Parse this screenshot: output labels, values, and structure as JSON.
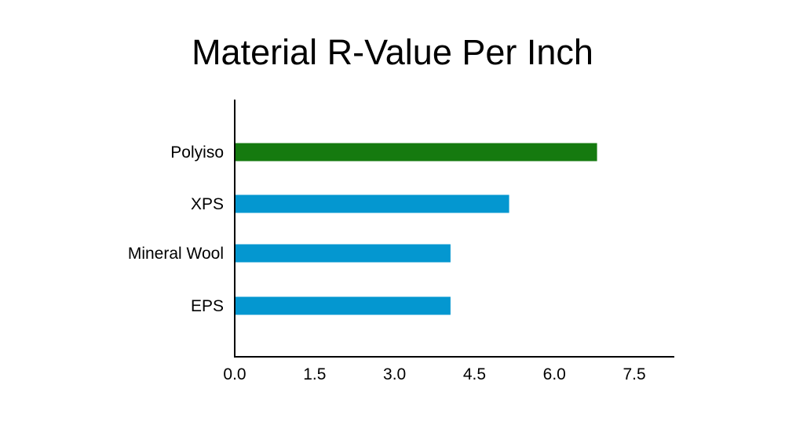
{
  "chart_data": {
    "type": "bar",
    "orientation": "horizontal",
    "title": "Material R-Value Per Inch",
    "xlabel": "",
    "ylabel": "",
    "categories": [
      "Polyiso",
      "XPS",
      "Mineral Wool",
      "EPS"
    ],
    "values": [
      6.8,
      5.15,
      4.05,
      4.05
    ],
    "bar_colors": [
      "#157a0f",
      "#0497d0",
      "#0497d0",
      "#0497d0"
    ],
    "xlim": [
      0,
      8.25
    ],
    "xticks": [
      "0.0",
      "1.5",
      "3.0",
      "4.5",
      "6.0",
      "7.5"
    ],
    "grid": false,
    "legend": "none"
  }
}
